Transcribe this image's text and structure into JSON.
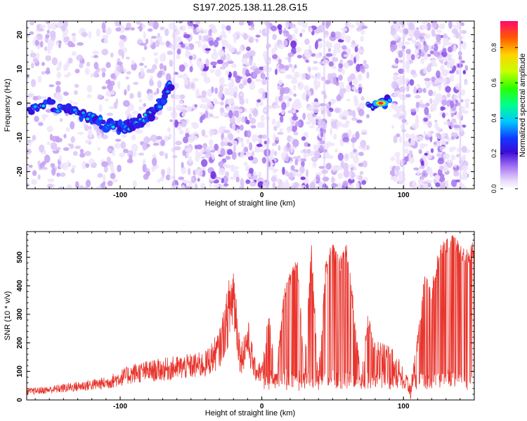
{
  "title": "S197.2025.138.11.28.G15",
  "chart_data": [
    {
      "type": "heatmap",
      "xlabel": "Height of straight line (km)",
      "ylabel": "Frequency (Hz)",
      "xlim": [
        -166,
        150
      ],
      "ylim": [
        -25,
        24
      ],
      "xticks": [
        -100,
        0,
        100
      ],
      "yticks": [
        -20,
        -10,
        0,
        10,
        20
      ],
      "colorbar": {
        "label": "Normalized spectral amplitude",
        "range": [
          0,
          0.95
        ],
        "ticks": [
          "0.0",
          "0.2",
          "0.4",
          "0.6",
          "0.8"
        ]
      },
      "ridges": [
        {
          "x": [
            -164,
            -150,
            -135,
            -120,
            -110,
            -100,
            -92,
            -85,
            -78,
            -72,
            -67,
            -64
          ],
          "y": [
            -1.5,
            -0.5,
            -2.5,
            -4.5,
            -6.5,
            -7,
            -6.5,
            -5,
            -3,
            0,
            3,
            6
          ]
        },
        {
          "x": [
            75,
            92
          ],
          "y": [
            0,
            0.5
          ]
        }
      ],
      "peak": {
        "x": 84,
        "y": 0,
        "amplitude": 0.9
      }
    },
    {
      "type": "line",
      "xlabel": "Height of straight line (km)",
      "ylabel": "SNR (10 * v/v)",
      "xlim": [
        -166,
        150
      ],
      "ylim": [
        0,
        590
      ],
      "xticks": [
        -100,
        0,
        100
      ],
      "yticks": [
        0,
        100,
        200,
        300,
        400,
        500
      ],
      "color": "#e8342c",
      "x": [
        -166,
        -150,
        -130,
        -110,
        -100,
        -90,
        -80,
        -70,
        -60,
        -50,
        -40,
        -30,
        -25,
        -20,
        -15,
        -10,
        -5,
        0,
        5,
        10,
        15,
        20,
        25,
        30,
        35,
        40,
        45,
        50,
        55,
        60,
        65,
        70,
        75,
        80,
        85,
        90,
        95,
        100,
        105,
        110,
        115,
        120,
        125,
        130,
        135,
        140,
        145,
        150
      ],
      "y": [
        25,
        30,
        40,
        50,
        65,
        80,
        85,
        90,
        95,
        100,
        105,
        150,
        230,
        320,
        120,
        180,
        90,
        80,
        300,
        60,
        350,
        420,
        480,
        90,
        520,
        60,
        450,
        540,
        470,
        520,
        300,
        50,
        280,
        180,
        170,
        160,
        140,
        80,
        30,
        200,
        420,
        380,
        510,
        540,
        560,
        520,
        500,
        530
      ]
    }
  ]
}
